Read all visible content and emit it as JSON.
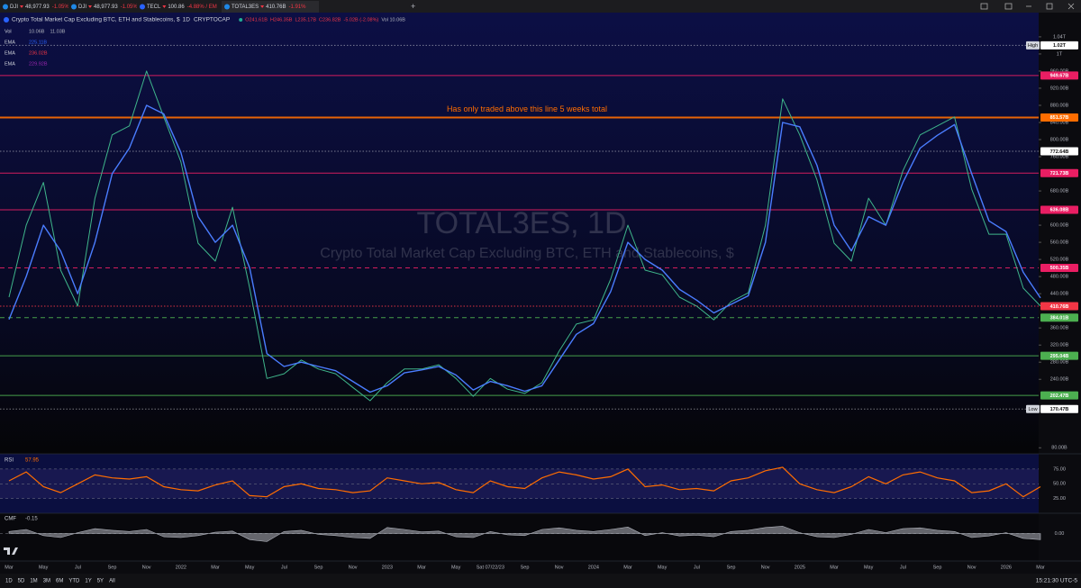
{
  "tabs": [
    {
      "symbol": "DJI",
      "price": "48,977.93",
      "change": "-1.05% / 48"
    },
    {
      "symbol": "DJI",
      "price": "48,977.93",
      "change": "-1.05% / 41"
    },
    {
      "symbol": "TECL",
      "price": "100.86",
      "change": "-4.88% / EM"
    },
    {
      "price": "410.76B",
      "change": "-1.91%"
    }
  ],
  "chart_data": {
    "type": "line",
    "title": "Crypto Total Market Cap Excluding BTC, ETH and Stablecoins, $",
    "interval": "1D",
    "exchange": "CRYPTOCAP",
    "ohlc": [
      "O241.61B",
      "H246.35B",
      "L235.17B",
      "C236.82B",
      "-5.02B (-2.08%)",
      "Vol 10.06B"
    ],
    "indicators": [
      {
        "name": "Vol",
        "values": [
          "10.06B",
          "11.03B"
        ]
      },
      {
        "values": [
          "225.11B"
        ]
      },
      {
        "name": "EMA",
        "values": [
          "236.02B"
        ]
      },
      {
        "name": "EMA",
        "values": [
          "229.92B"
        ]
      }
    ],
    "watermark": "TOTAL3ES, 1D",
    "annotation": "Has only traded above this line 5 weeks total",
    "categories": [
      "Mar",
      null,
      "May",
      null,
      "Jul",
      null,
      "Sep",
      null,
      "Nov",
      null,
      "2022",
      null,
      "Mar",
      null,
      "May",
      null,
      "Jul",
      null,
      "Sep",
      null,
      "Nov",
      null,
      "2023",
      null,
      "Mar",
      null,
      "May",
      null,
      "Sat 07/22/23",
      null,
      "Sep",
      null,
      "Nov",
      null,
      "2024",
      null,
      "Mar",
      null,
      "May",
      null,
      "Jul",
      null,
      "Sep",
      null,
      "Nov",
      null,
      "2025",
      null,
      "Mar",
      null,
      "May",
      null,
      "Jul",
      null,
      "Sep",
      null,
      "Nov",
      null,
      "2026",
      null,
      "Mar"
    ],
    "series": [
      {
        "name": "TOTAL3ES",
        "color": "#3fb68b",
        "values": [
          432,
          600,
          700,
          495,
          411,
          663,
          811,
          832,
          960,
          853,
          748,
          558,
          516,
          642,
          453,
          242,
          253,
          285,
          264,
          253,
          221,
          190,
          232,
          264,
          264,
          274,
          242,
          200,
          242,
          217,
          207,
          232,
          306,
          369,
          379,
          474,
          600,
          495,
          484,
          432,
          411,
          379,
          421,
          442,
          600,
          895,
          811,
          706,
          558,
          516,
          663,
          600,
          727,
          811,
          832,
          853,
          684,
          579,
          579,
          453,
          411
        ]
      },
      {
        "name": "EMA",
        "color": "#4a7dff",
        "values": [
          380,
          480,
          600,
          540,
          440,
          560,
          720,
          780,
          880,
          860,
          770,
          620,
          560,
          600,
          500,
          300,
          270,
          280,
          270,
          260,
          235,
          210,
          225,
          255,
          262,
          270,
          250,
          215,
          235,
          225,
          212,
          225,
          285,
          345,
          370,
          445,
          560,
          520,
          495,
          450,
          425,
          395,
          415,
          435,
          560,
          840,
          830,
          740,
          600,
          540,
          620,
          600,
          700,
          780,
          810,
          835,
          720,
          610,
          585,
          490,
          430
        ]
      }
    ],
    "ylim": [
      68,
      1084
    ],
    "yticks": [
      {
        "value": 1040,
        "label": "1.04T"
      },
      {
        "value": 1000,
        "label": "1T"
      },
      {
        "value": 960,
        "label": "960.00B"
      },
      {
        "value": 920,
        "label": "920.00B"
      },
      {
        "value": 880,
        "label": "880.00B"
      },
      {
        "value": 840,
        "label": "840.00B"
      },
      {
        "value": 800,
        "label": "800.00B"
      },
      {
        "value": 760,
        "label": "760.00B"
      },
      {
        "value": 680,
        "label": "680.00B"
      },
      {
        "value": 600,
        "label": "600.00B"
      },
      {
        "value": 560,
        "label": "560.00B"
      },
      {
        "value": 520,
        "label": "520.00B"
      },
      {
        "value": 480,
        "label": "480.00B"
      },
      {
        "value": 440,
        "label": "440.00B"
      },
      {
        "value": 360,
        "label": "360.00B"
      },
      {
        "value": 320,
        "label": "320.00B"
      },
      {
        "value": 280,
        "label": "280.00B"
      },
      {
        "value": 240,
        "label": "240.00B"
      },
      {
        "value": 80,
        "label": "80.00B"
      }
    ],
    "levels": [
      {
        "value": 1020,
        "label": "1.02T",
        "tag": "High",
        "color": "#ffffff",
        "style": "dotted"
      },
      {
        "value": 949.67,
        "label": "949.67B",
        "color": "#e91e63",
        "style": "solid"
      },
      {
        "value": 851.57,
        "label": "851.57B",
        "color": "#ff6d00",
        "style": "solid",
        "width": 2
      },
      {
        "value": 772.64,
        "label": "772.64B",
        "color": "#ffffff",
        "style": "dotted"
      },
      {
        "value": 721.73,
        "label": "721.73B",
        "color": "#e91e63",
        "style": "solid"
      },
      {
        "value": 636.08,
        "label": "636.08B",
        "color": "#e91e63",
        "style": "solid"
      },
      {
        "value": 500.35,
        "label": "500.35B",
        "color": "#e91e63",
        "style": "dashed"
      },
      {
        "value": 410.76,
        "label": "410.76B",
        "color": "#f23645",
        "style": "dotted"
      },
      {
        "value": 384.01,
        "label": "384.01B",
        "color": "#4caf50",
        "style": "dashed"
      },
      {
        "value": 295.04,
        "label": "295.04B",
        "color": "#4caf50",
        "style": "solid"
      },
      {
        "value": 202.47,
        "label": "202.47B",
        "color": "#4caf50",
        "style": "solid"
      },
      {
        "value": 170.47,
        "label": "170.47B",
        "tag": "Low",
        "color": "#ffffff",
        "style": "dotted"
      }
    ],
    "rsi": {
      "name": "RSI",
      "value": 57.95,
      "color": "#ff6d00",
      "ylim": [
        0,
        100
      ],
      "yticks": [
        {
          "value": 75,
          "label": "75.00"
        },
        {
          "value": 50,
          "label": "50.00"
        },
        {
          "value": 25,
          "label": "25.00"
        }
      ],
      "values": [
        55,
        70,
        45,
        35,
        50,
        65,
        60,
        58,
        62,
        45,
        40,
        38,
        48,
        55,
        30,
        28,
        45,
        50,
        42,
        40,
        35,
        38,
        60,
        55,
        50,
        52,
        40,
        35,
        55,
        45,
        42,
        60,
        70,
        65,
        58,
        62,
        75,
        45,
        48,
        40,
        42,
        38,
        55,
        60,
        72,
        78,
        50,
        40,
        35,
        45,
        62,
        50,
        65,
        70,
        60,
        55,
        35,
        38,
        50,
        28,
        45
      ]
    },
    "cmf": {
      "name": "CMF",
      "value": -0.15,
      "color": "#b2b5be",
      "ylim": [
        -0.5,
        0.5
      ],
      "yticks": [
        {
          "value": 0,
          "label": "0.00"
        }
      ],
      "values": [
        0.05,
        0.1,
        -0.05,
        -0.1,
        0.02,
        0.12,
        0.08,
        0.05,
        0.1,
        -0.08,
        -0.1,
        -0.05,
        0.03,
        0.06,
        -0.15,
        -0.2,
        0.05,
        0.08,
        -0.02,
        -0.05,
        -0.1,
        -0.12,
        0.15,
        0.1,
        0.04,
        0.06,
        -0.08,
        -0.1,
        0.05,
        -0.03,
        -0.05,
        0.1,
        0.14,
        0.08,
        0.05,
        0.1,
        0.16,
        -0.05,
        0.02,
        -0.06,
        -0.04,
        -0.08,
        0.05,
        0.08,
        0.15,
        0.18,
        0.02,
        -0.08,
        -0.1,
        -0.02,
        0.1,
        0.02,
        0.12,
        0.14,
        0.08,
        0.05,
        -0.1,
        -0.06,
        0.02,
        -0.12,
        -0.15
      ]
    }
  },
  "ranges": [
    "1D",
    "5D",
    "1M",
    "3M",
    "6M",
    "YTD",
    "1Y",
    "5Y",
    "All"
  ],
  "clock": "15:21:30 UTC-5"
}
